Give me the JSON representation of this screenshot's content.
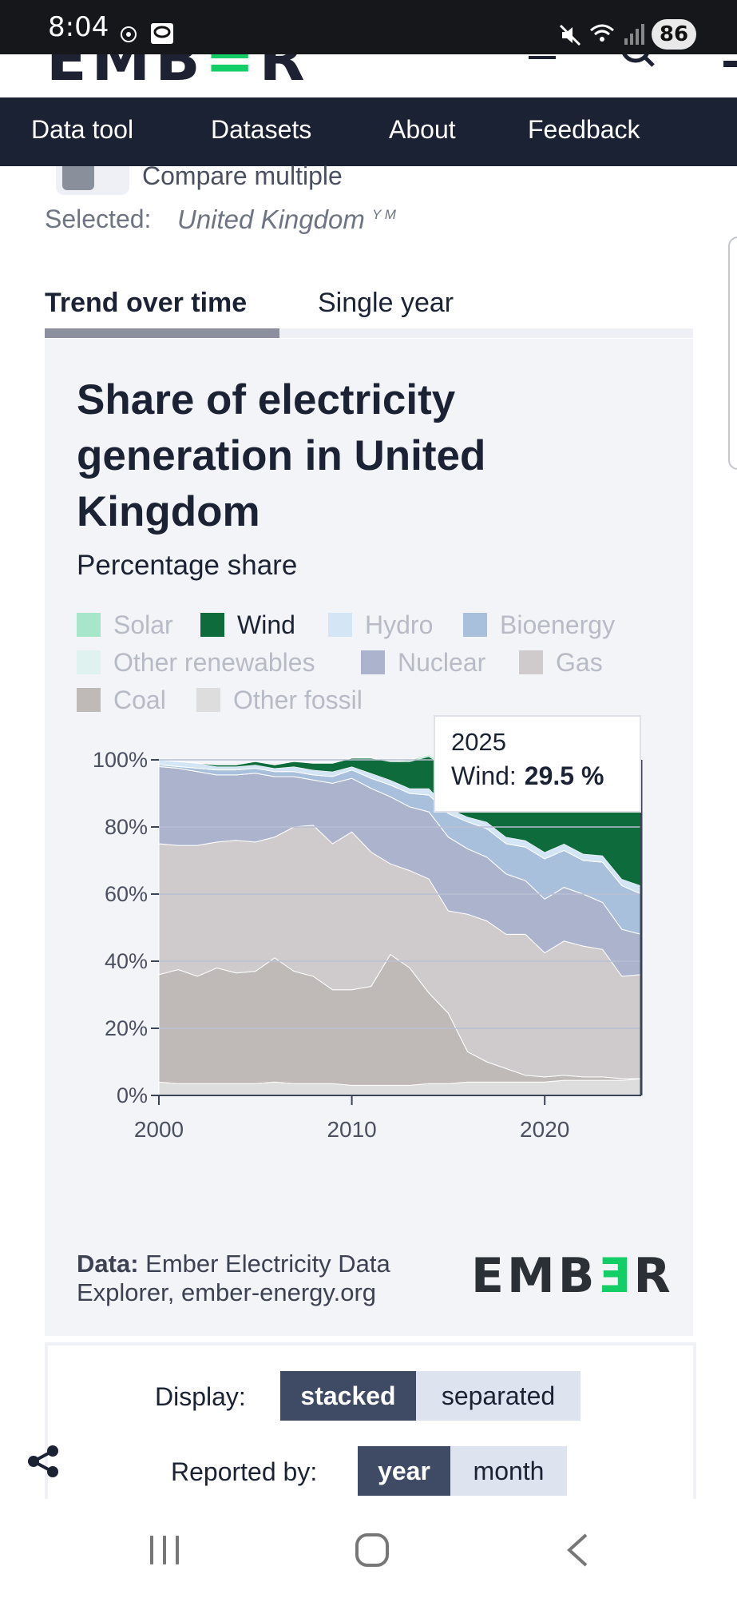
{
  "status_bar": {
    "time": "8:04",
    "battery": "86"
  },
  "site": {
    "logo": "EMB=R"
  },
  "nav": {
    "items": [
      "Data tool",
      "Datasets",
      "About",
      "Feedback"
    ]
  },
  "controls": {
    "compare_label": "Compare multiple",
    "selected_label": "Selected:",
    "selected_value": "United Kingdom",
    "selected_suffix": "Y M"
  },
  "tabs": {
    "trend": "Trend over time",
    "single": "Single year"
  },
  "chart": {
    "title": "Share of electricity generation in United Kingdom",
    "subtitle": "Percentage share",
    "source_label": "Data:",
    "source_text": "Ember Electricity Data Explorer, ember-energy.org",
    "brand": {
      "part1": "EMB",
      "part2": "Ǝ",
      "part3": "R"
    },
    "tooltip": {
      "year": "2025",
      "series": "Wind:",
      "value": "29.5 %"
    }
  },
  "colors": {
    "Solar": "#a8e6c9",
    "Wind": "#0e6b3b",
    "Hydro": "#d4e6f5",
    "Bioenergy": "#a9c0dc",
    "Other renewables": "#dff2f0",
    "Nuclear": "#abb4cc",
    "Gas": "#cfcbcc",
    "Coal": "#bfb9b8",
    "Other fossil": "#dddddd"
  },
  "chart_data": {
    "type": "area",
    "stacked": true,
    "title": "Share of electricity generation in United Kingdom",
    "subtitle": "Percentage share",
    "x": [
      2000,
      2001,
      2002,
      2003,
      2004,
      2005,
      2006,
      2007,
      2008,
      2009,
      2010,
      2011,
      2012,
      2013,
      2014,
      2015,
      2016,
      2017,
      2018,
      2019,
      2020,
      2021,
      2022,
      2023,
      2024,
      2025
    ],
    "series": [
      {
        "name": "Other fossil",
        "values": [
          4,
          3.5,
          3.5,
          3.5,
          3.5,
          3.5,
          4,
          3.5,
          3.5,
          3.5,
          3,
          3,
          3,
          3,
          3.5,
          3.5,
          4,
          4,
          4,
          4,
          4,
          4.5,
          4.5,
          4.5,
          4.5,
          5
        ]
      },
      {
        "name": "Coal",
        "values": [
          32,
          34,
          32,
          34.5,
          33,
          33.5,
          37,
          33.5,
          32,
          28,
          28.5,
          29.5,
          39,
          35,
          27,
          21,
          9,
          6,
          4,
          2,
          1.5,
          1.5,
          1,
          1,
          0.5,
          0
        ]
      },
      {
        "name": "Gas",
        "values": [
          39,
          37,
          39,
          37.5,
          39.5,
          38.5,
          36,
          43,
          45,
          43.5,
          47,
          40,
          27,
          29,
          34,
          30.5,
          41,
          42,
          40,
          42,
          37,
          40,
          39,
          38,
          30.5,
          31
        ]
      },
      {
        "name": "Nuclear",
        "values": [
          23,
          23,
          22,
          20,
          19.5,
          20.5,
          18,
          15,
          13.5,
          18,
          16,
          19,
          20,
          19,
          20,
          22,
          19.5,
          19,
          18,
          16,
          16,
          16,
          15.5,
          14,
          14,
          12
        ]
      },
      {
        "name": "Other renewables",
        "values": [
          0,
          0,
          0,
          0,
          0,
          0,
          0,
          0,
          0,
          0,
          0,
          0,
          0,
          0,
          0,
          0,
          0,
          0,
          0,
          0,
          0,
          0,
          0,
          0,
          0,
          0
        ]
      },
      {
        "name": "Bioenergy",
        "values": [
          0.5,
          0.5,
          1,
          1.5,
          1.5,
          1.5,
          1.5,
          1.5,
          1.5,
          2,
          2.5,
          3,
          3.5,
          4,
          5,
          7,
          8,
          8.5,
          9,
          10,
          12,
          11,
          10,
          12,
          13,
          12
        ]
      },
      {
        "name": "Hydro",
        "values": [
          1.5,
          1.5,
          1.5,
          1,
          1,
          1,
          1,
          1.5,
          1.5,
          1.5,
          1,
          1.5,
          1.5,
          1.5,
          2,
          1.5,
          1.5,
          2,
          2,
          2,
          2,
          2,
          2,
          2,
          2,
          2.5
        ]
      },
      {
        "name": "Wind",
        "values": [
          0,
          0,
          0,
          0.5,
          0.5,
          1,
          1,
          1.5,
          2,
          2.5,
          2.5,
          4.5,
          5.5,
          8,
          9.5,
          12,
          13,
          16,
          18,
          21,
          24,
          21,
          24,
          24,
          31,
          29.5
        ]
      },
      {
        "name": "Solar",
        "values": [
          0,
          0,
          0,
          0,
          0,
          0,
          0,
          0,
          0,
          0,
          0,
          0,
          0,
          0.5,
          0.5,
          1,
          1,
          1,
          1,
          1,
          1,
          1,
          1,
          1,
          1,
          1
        ]
      }
    ],
    "legend": [
      "Solar",
      "Wind",
      "Hydro",
      "Bioenergy",
      "Other renewables",
      "Nuclear",
      "Gas",
      "Coal",
      "Other fossil"
    ],
    "highlighted_series": "Wind",
    "ylim": [
      0,
      100
    ],
    "y_ticks": [
      "0%",
      "20%",
      "40%",
      "60%",
      "80%",
      "100%"
    ],
    "x_ticks": [
      "2000",
      "2010",
      "2020"
    ],
    "xlabel": "",
    "ylabel": ""
  },
  "display_controls": {
    "display_label": "Display:",
    "display_options": [
      "stacked",
      "separated"
    ],
    "reported_label": "Reported by:",
    "reported_options": [
      "year",
      "month"
    ]
  }
}
